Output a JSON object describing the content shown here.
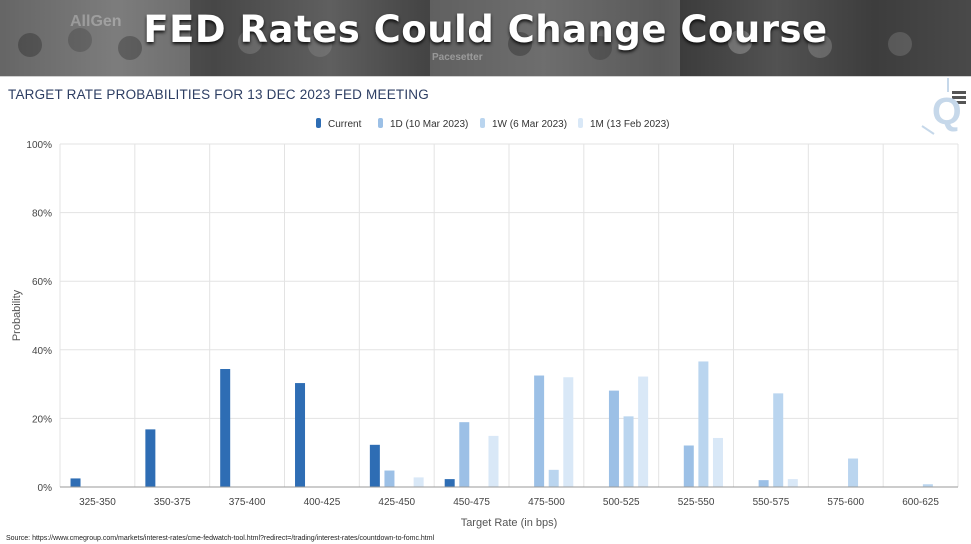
{
  "banner": {
    "title": "FED Rates Could Change Course",
    "photo_strip_text_1": "AllGen",
    "photo_strip_text_2": "Pacesetter"
  },
  "chart_title": "TARGET RATE PROBABILITIES FOR 13 DEC 2023 FED MEETING",
  "menu_icon": "hamburger-icon",
  "source": "Source: https://www.cmegroup.com/markets/interest-rates/cme-fedwatch-tool.html?redirect=/trading/interest-rates/countdown-to-fomc.html",
  "chart_data": {
    "type": "bar",
    "title": "TARGET RATE PROBABILITIES FOR 13 DEC 2023 FED MEETING",
    "xlabel": "Target Rate (in bps)",
    "ylabel": "Probability",
    "ylim": [
      0,
      100
    ],
    "yticks": [
      "0%",
      "20%",
      "40%",
      "60%",
      "80%",
      "100%"
    ],
    "grid": true,
    "legend_position": "top-center",
    "categories": [
      "325-350",
      "350-375",
      "375-400",
      "400-425",
      "425-450",
      "450-475",
      "475-500",
      "500-525",
      "525-550",
      "550-575",
      "575-600",
      "600-625"
    ],
    "series": [
      {
        "name": "Current",
        "color": "#2e6db4",
        "values": [
          2.5,
          16.8,
          34.4,
          30.3,
          12.3,
          2.3,
          0,
          0,
          0,
          0,
          0,
          0
        ]
      },
      {
        "name": "1D (10 Mar 2023)",
        "color": "#9cc0e6",
        "values": [
          0,
          0,
          0,
          0,
          4.8,
          18.9,
          32.5,
          28.1,
          12.1,
          2.0,
          0,
          0
        ]
      },
      {
        "name": "1W (6 Mar 2023)",
        "color": "#bad5ef",
        "values": [
          0,
          0,
          0,
          0,
          0,
          0,
          5.0,
          20.6,
          36.6,
          27.3,
          8.3,
          0.8
        ]
      },
      {
        "name": "1M (13 Feb 2023)",
        "color": "#d9e8f7",
        "values": [
          0,
          0,
          0,
          0,
          2.8,
          14.9,
          32.0,
          32.2,
          14.3,
          2.3,
          0,
          0
        ]
      }
    ]
  }
}
